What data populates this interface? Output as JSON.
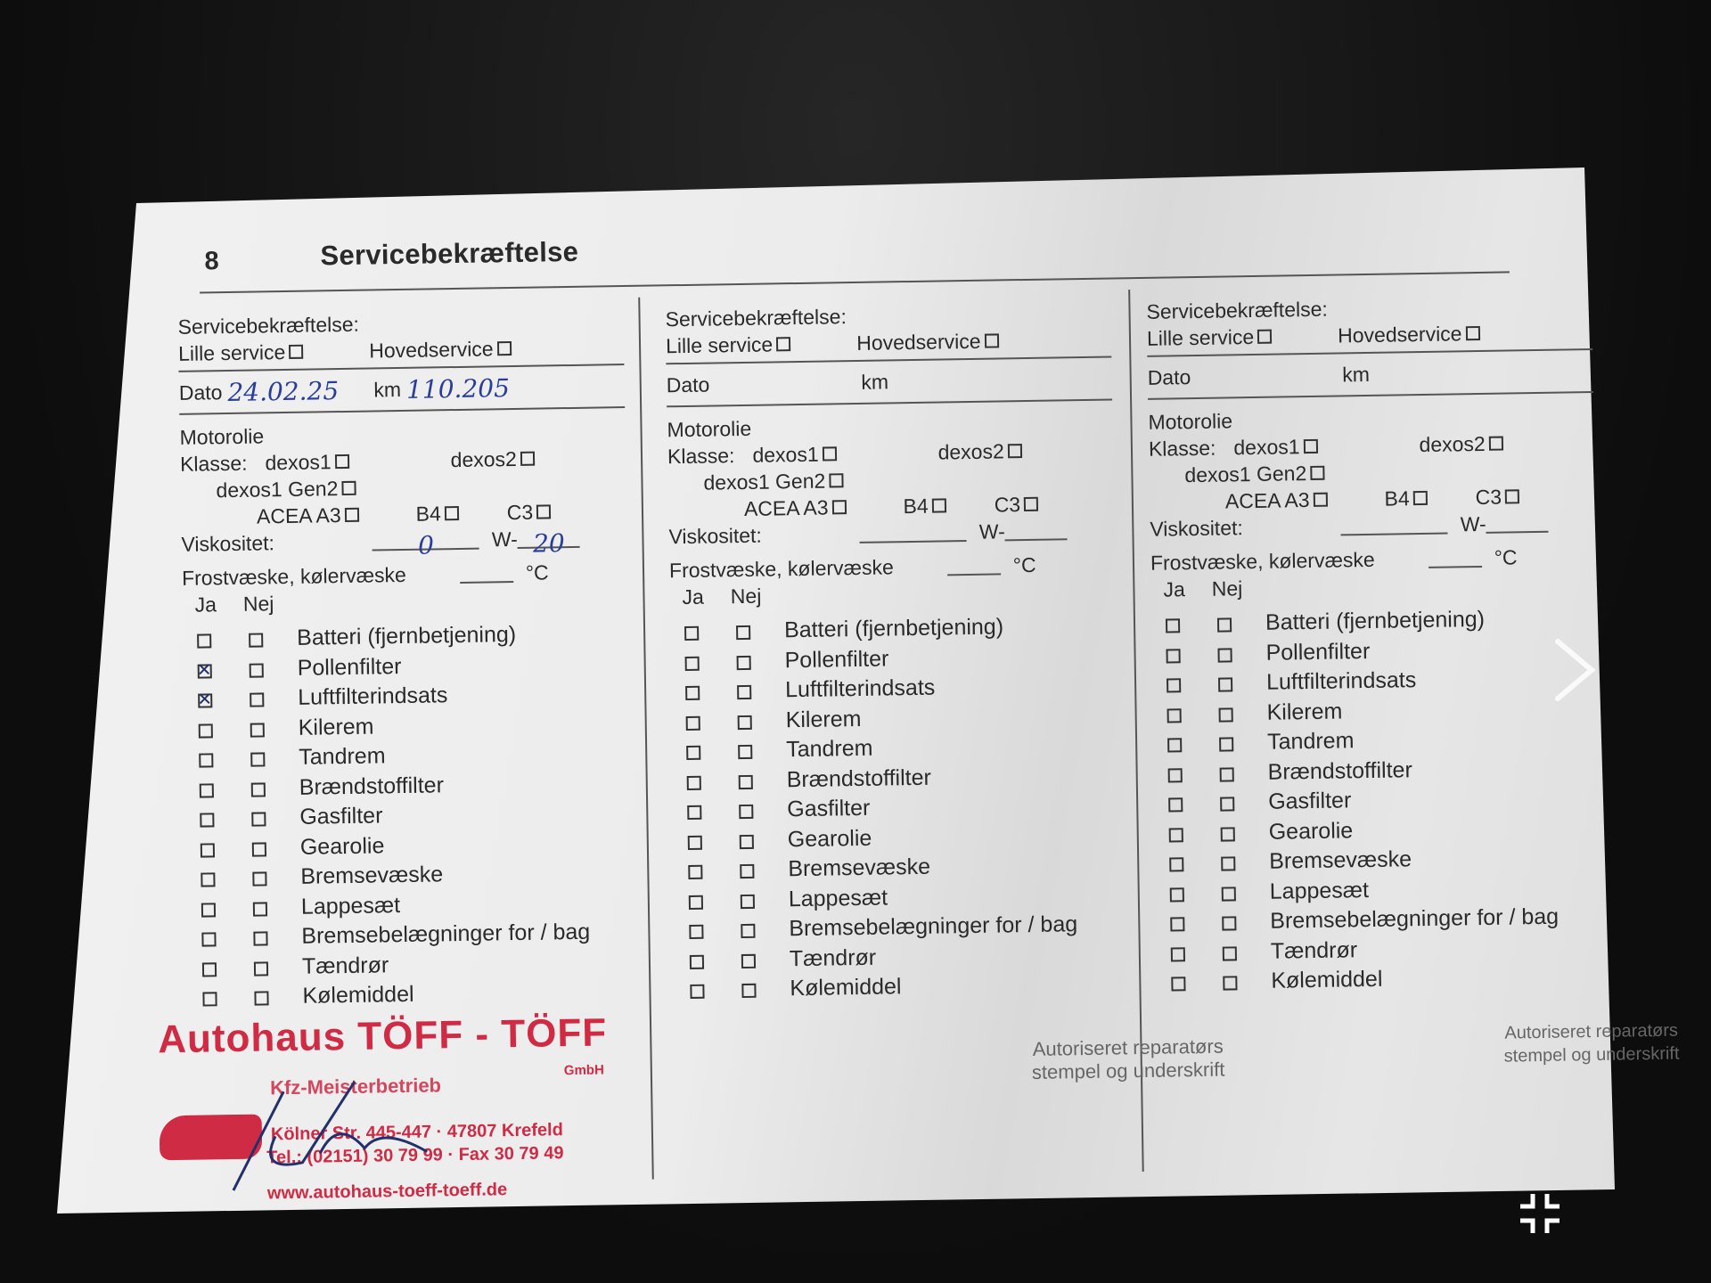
{
  "page": {
    "number": "8",
    "title": "Servicebekræftelse"
  },
  "form_labels": {
    "heading": "Servicebekræftelse:",
    "lille_service": "Lille service",
    "hovedservice": "Hovedservice",
    "dato": "Dato",
    "km": "km",
    "motorolie": "Motorolie",
    "klasse": "Klasse:",
    "dexos1": "dexos1",
    "dexos2": "dexos2",
    "dexos1_gen2": "dexos1 Gen2",
    "acea_a3": "ACEA A3",
    "b4": "B4",
    "c3": "C3",
    "viskositet": "Viskositet:",
    "w": "W-",
    "frostvaeske": "Frostvæske, kølervæske",
    "celsius": "°C",
    "ja": "Ja",
    "nej": "Nej",
    "stamp_caption_1": "Autoriseret reparatørs",
    "stamp_caption_2": "stempel og underskrift"
  },
  "items": [
    "Batteri (fjernbetjening)",
    "Pollenfilter",
    "Luftfilterindsats",
    "Kilerem",
    "Tandrem",
    "Brændstoffilter",
    "Gasfilter",
    "Gearolie",
    "Bremsevæske",
    "Lappesæt",
    "Bremsebelægninger for / bag",
    "Tændrør",
    "Kølemiddel"
  ],
  "entries": [
    {
      "dato": "24.02.25",
      "km": "110.205",
      "viskositet_first": "0",
      "viskositet_second": "20",
      "checked_ja": [
        false,
        true,
        true,
        false,
        false,
        false,
        false,
        false,
        false,
        false,
        false,
        false,
        false
      ]
    },
    {
      "dato": "",
      "km": "",
      "viskositet_first": "",
      "viskositet_second": "",
      "checked_ja": [
        false,
        false,
        false,
        false,
        false,
        false,
        false,
        false,
        false,
        false,
        false,
        false,
        false
      ]
    },
    {
      "dato": "",
      "km": "",
      "viskositet_first": "",
      "viskositet_second": "",
      "checked_ja": [
        false,
        false,
        false,
        false,
        false,
        false,
        false,
        false,
        false,
        false,
        false,
        false,
        false
      ]
    }
  ],
  "stamp": {
    "name": "Autohaus TÖFF - TÖFF",
    "gmbh": "GmbH",
    "subtitle": "Kfz-Meisterbetrieb",
    "address": "Kölner Str. 445-447 · 47807 Krefeld",
    "phone": "Tel.: (02151) 30 79 99 · Fax 30 79 49",
    "website": "www.autohaus-toeff-toeff.de"
  },
  "viewer": {
    "next_icon": "chevron-right-icon",
    "collapse_icon": "exit-fullscreen-icon"
  },
  "colors": {
    "ink": "#2a3d9a",
    "stamp": "#d02b45"
  }
}
